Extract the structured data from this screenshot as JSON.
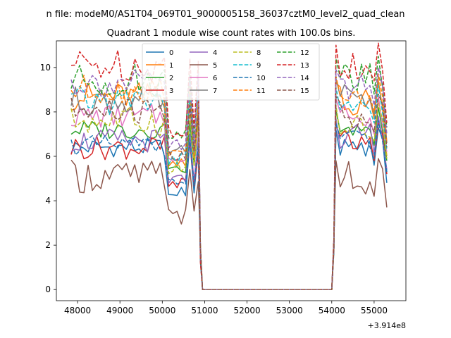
{
  "chart_data": {
    "type": "line",
    "suptitle": "n file: modeM0/AS1T04_069T01_9000005158_36037cztM0_level2_quad_clean",
    "title": "Quadrant 1 module wise count rates with 100.0s bins.",
    "xlabel": "",
    "ylabel": "",
    "offset_text": "+3.914e8",
    "xlim": [
      47500,
      55750
    ],
    "ylim": [
      -0.5,
      11.2
    ],
    "x_ticks": [
      48000,
      49000,
      50000,
      51000,
      52000,
      53000,
      54000,
      55000
    ],
    "x_tick_labels": [
      "48000",
      "49000",
      "50000",
      "51000",
      "52000",
      "53000",
      "54000",
      "55000"
    ],
    "y_ticks": [
      0,
      2,
      4,
      6,
      8,
      10
    ],
    "y_tick_labels": [
      "0",
      "2",
      "4",
      "6",
      "8",
      "10"
    ],
    "legend_position": "upper-center",
    "x_start": 47850,
    "x_step": 100,
    "gap_x": [
      50950,
      54000
    ],
    "gap_value": 0,
    "segment1_len": 31,
    "segment2_len": 13,
    "series": [
      {
        "name": "0",
        "color": "#1f77b4",
        "dash": "solid",
        "level1": 6.4,
        "level2": 6.4,
        "amp": 0.2,
        "dip": 4.4
      },
      {
        "name": "1",
        "color": "#ff7f0e",
        "dash": "solid",
        "level1": 8.7,
        "level2": 8.5,
        "amp": 0.3,
        "dip": 5.6
      },
      {
        "name": "2",
        "color": "#2ca02c",
        "dash": "solid",
        "level1": 7.2,
        "level2": 7.3,
        "amp": 0.2,
        "dip": 5.4
      },
      {
        "name": "3",
        "color": "#d62728",
        "dash": "solid",
        "level1": 6.4,
        "level2": 6.6,
        "amp": 0.25,
        "dip": 4.8
      },
      {
        "name": "4",
        "color": "#9467bd",
        "dash": "solid",
        "level1": 6.7,
        "level2": 6.9,
        "amp": 0.25,
        "dip": 5.0
      },
      {
        "name": "5",
        "color": "#8c564b",
        "dash": "solid",
        "level1": 5.1,
        "level2": 5.0,
        "amp": 0.35,
        "dip": 3.3
      },
      {
        "name": "6",
        "color": "#e377c2",
        "dash": "solid",
        "level1": 7.8,
        "level2": 7.8,
        "amp": 0.25,
        "dip": 5.8
      },
      {
        "name": "7",
        "color": "#7f7f7f",
        "dash": "solid",
        "level1": 8.5,
        "level2": 8.7,
        "amp": 0.3,
        "dip": 6.2
      },
      {
        "name": "8",
        "color": "#bcbd22",
        "dash": "dashed",
        "level1": 7.6,
        "level2": 7.5,
        "amp": 0.3,
        "dip": 5.5
      },
      {
        "name": "9",
        "color": "#17becf",
        "dash": "dashed",
        "level1": 8.5,
        "level2": 8.3,
        "amp": 0.3,
        "dip": 5.9
      },
      {
        "name": "10",
        "color": "#1f77b4",
        "dash": "dashed",
        "level1": 6.5,
        "level2": 6.7,
        "amp": 0.2,
        "dip": 4.9
      },
      {
        "name": "11",
        "color": "#ff7f0e",
        "dash": "dashed",
        "level1": 9.0,
        "level2": 8.8,
        "amp": 0.3,
        "dip": 6.2
      },
      {
        "name": "12",
        "color": "#2ca02c",
        "dash": "dashed",
        "level1": 9.4,
        "level2": 9.6,
        "amp": 0.35,
        "dip": 6.9
      },
      {
        "name": "13",
        "color": "#d62728",
        "dash": "dashed",
        "level1": 10.1,
        "level2": 10.2,
        "amp": 0.35,
        "dip": 7.1
      },
      {
        "name": "14",
        "color": "#9467bd",
        "dash": "dashed",
        "level1": 9.3,
        "level2": 9.1,
        "amp": 0.3,
        "dip": 6.6
      },
      {
        "name": "15",
        "color": "#8c564b",
        "dash": "dashed",
        "level1": 8.0,
        "level2": 7.9,
        "amp": 0.3,
        "dip": 6.0
      }
    ]
  }
}
